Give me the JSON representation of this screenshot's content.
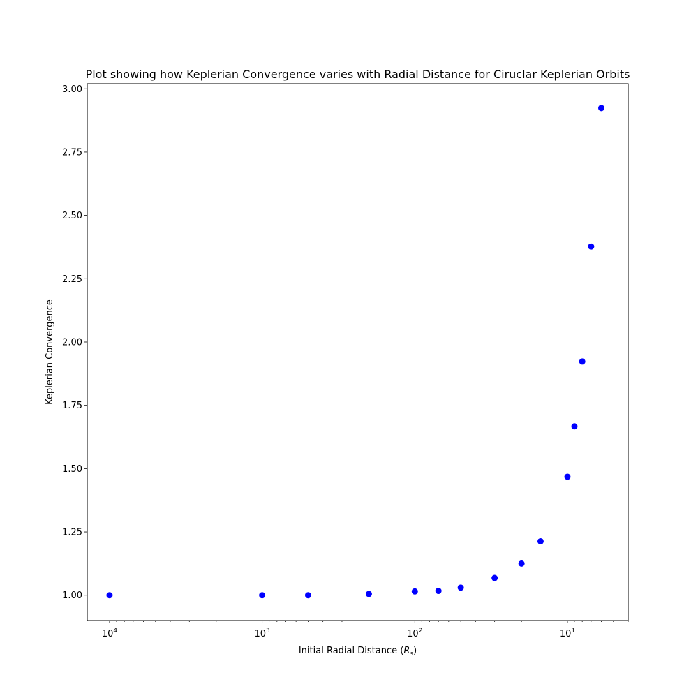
{
  "chart_data": {
    "type": "scatter",
    "title": "Plot showing how Keplerian Convergence varies with Radial Distance for Ciruclar Keplerian Orbits",
    "xlabel": "Initial Radial Distance",
    "xlabel_unit_base": "R",
    "xlabel_unit_sub": "s",
    "ylabel": "Keplerian Convergence",
    "x_scale": "log",
    "x_inverted": true,
    "xlim": [
      14000,
      4.0
    ],
    "ylim": [
      0.9,
      3.02
    ],
    "x_ticks": [
      {
        "value": 10000,
        "base": "10",
        "exp": "4"
      },
      {
        "value": 1000,
        "base": "10",
        "exp": "3"
      },
      {
        "value": 100,
        "base": "10",
        "exp": "2"
      },
      {
        "value": 10,
        "base": "10",
        "exp": "1"
      }
    ],
    "y_ticks": [
      "1.00",
      "1.25",
      "1.50",
      "1.75",
      "2.00",
      "2.25",
      "2.50",
      "2.75",
      "3.00"
    ],
    "grid": false,
    "color": "#0000ff",
    "points": [
      {
        "x": 10000,
        "y": 1.0
      },
      {
        "x": 1000,
        "y": 1.0
      },
      {
        "x": 500,
        "y": 1.0
      },
      {
        "x": 200,
        "y": 1.005
      },
      {
        "x": 100,
        "y": 1.015
      },
      {
        "x": 70,
        "y": 1.017
      },
      {
        "x": 50,
        "y": 1.03
      },
      {
        "x": 30,
        "y": 1.068
      },
      {
        "x": 20,
        "y": 1.125
      },
      {
        "x": 15,
        "y": 1.213
      },
      {
        "x": 10,
        "y": 1.468
      },
      {
        "x": 9,
        "y": 1.667
      },
      {
        "x": 8,
        "y": 1.923
      },
      {
        "x": 7,
        "y": 2.377
      },
      {
        "x": 6,
        "y": 2.924
      }
    ]
  }
}
